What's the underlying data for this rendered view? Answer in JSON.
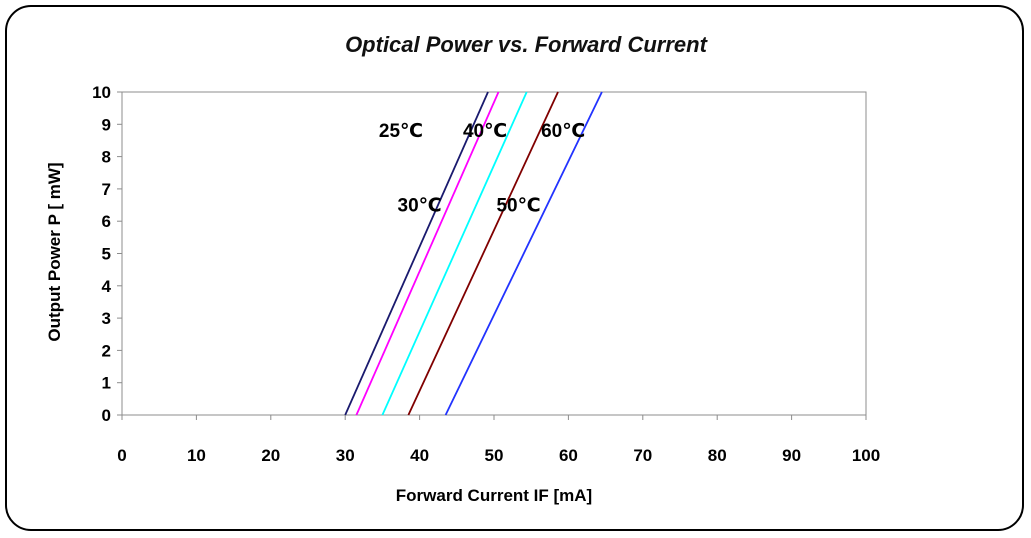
{
  "chart_data": {
    "type": "line",
    "title": "Optical Power vs. Forward Current",
    "xlabel": "Forward Current IF [mA]",
    "ylabel": "Output Power P  [ mW]",
    "xlim": [
      0,
      100
    ],
    "ylim": [
      0,
      10
    ],
    "xticks": [
      "0",
      "10",
      "20",
      "30",
      "40",
      "50",
      "60",
      "70",
      "80",
      "90",
      "100"
    ],
    "yticks": [
      "0",
      "1",
      "2",
      "3",
      "4",
      "5",
      "6",
      "7",
      "8",
      "9",
      "10"
    ],
    "grid": false,
    "legend": "none",
    "series": [
      {
        "name": "25℃",
        "color": "#1a1a6e",
        "x": [
          30.0,
          49.2
        ],
        "y": [
          0,
          10
        ]
      },
      {
        "name": "30℃",
        "color": "#ff00ff",
        "x": [
          31.5,
          50.6
        ],
        "y": [
          0,
          10
        ]
      },
      {
        "name": "40℃",
        "color": "#00ffff",
        "x": [
          35.0,
          54.4
        ],
        "y": [
          0,
          10
        ]
      },
      {
        "name": "50℃",
        "color": "#800000",
        "x": [
          38.5,
          58.6
        ],
        "y": [
          0,
          10
        ]
      },
      {
        "name": "60℃",
        "color": "#2233ff",
        "x": [
          43.5,
          64.5
        ],
        "y": [
          0,
          10
        ]
      }
    ],
    "annotations": [
      {
        "text": "25℃",
        "x": 37.5,
        "y": 8.6
      },
      {
        "text": "40℃",
        "x": 48.8,
        "y": 8.6
      },
      {
        "text": "60℃",
        "x": 59.3,
        "y": 8.6
      },
      {
        "text": "30℃",
        "x": 40.0,
        "y": 6.3
      },
      {
        "text": "50℃",
        "x": 53.3,
        "y": 6.3
      }
    ]
  }
}
